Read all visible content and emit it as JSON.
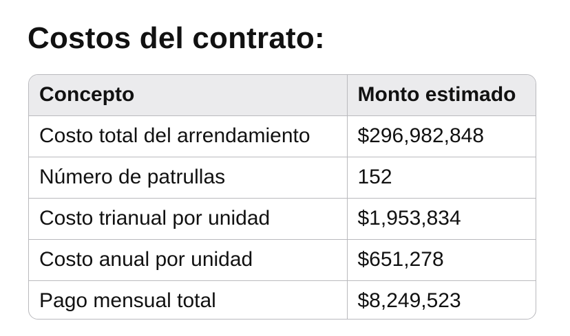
{
  "title": "Costos del contrato:",
  "table": {
    "headers": [
      "Concepto",
      "Monto estimado"
    ],
    "rows": [
      [
        "Costo total del arrendamiento",
        "$296,982,848"
      ],
      [
        "Número de patrullas",
        "152"
      ],
      [
        "Costo trianual por unidad",
        "$1,953,834"
      ],
      [
        "Costo anual por unidad",
        "$651,278"
      ],
      [
        "Pago mensual total",
        "$8,249,523"
      ]
    ]
  },
  "colors": {
    "header_background": "#ebebed",
    "border": "#b9b9bd",
    "text": "#111111"
  }
}
